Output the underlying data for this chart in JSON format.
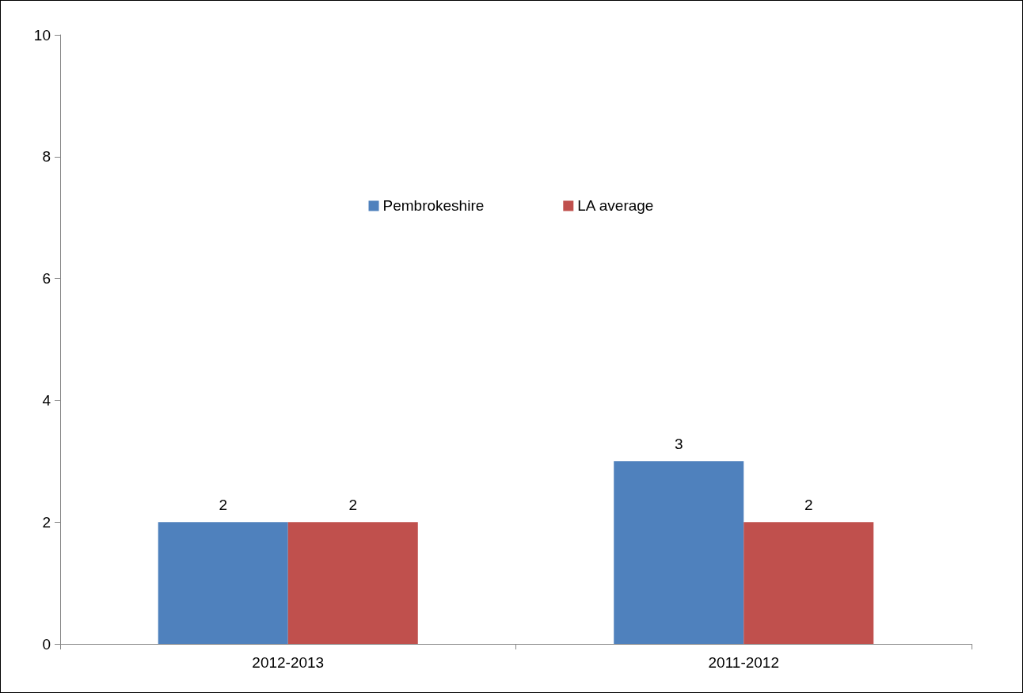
{
  "chart_data": {
    "type": "bar",
    "categories": [
      "2012-2013",
      "2011-2012"
    ],
    "series": [
      {
        "name": "Pembrokeshire",
        "color": "#4f81bd",
        "values": [
          2,
          3
        ]
      },
      {
        "name": "LA average",
        "color": "#c0504d",
        "values": [
          2,
          2
        ]
      }
    ],
    "ylim": [
      0,
      10
    ],
    "yticks": [
      0,
      2,
      4,
      6,
      8,
      10
    ],
    "grid": false,
    "legend": "top",
    "data_labels": true
  }
}
